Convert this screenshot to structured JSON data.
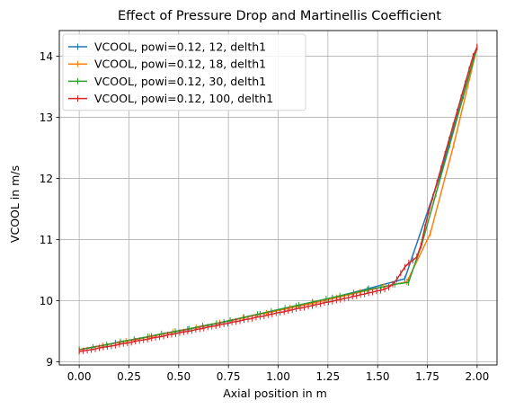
{
  "chart_data": {
    "type": "line",
    "title": "Effect of Pressure Drop and Martinellis Coefficient",
    "xlabel": "Axial position in m",
    "ylabel": "VCOOL in m/s",
    "xlim": [
      -0.1,
      2.1
    ],
    "ylim": [
      8.95,
      14.42
    ],
    "xticks": [
      "0.00",
      "0.25",
      "0.50",
      "0.75",
      "1.00",
      "1.25",
      "1.50",
      "1.75",
      "2.00"
    ],
    "xtick_values": [
      0,
      0.25,
      0.5,
      0.75,
      1.0,
      1.25,
      1.5,
      1.75,
      2.0
    ],
    "yticks": [
      "9",
      "10",
      "11",
      "12",
      "13",
      "14"
    ],
    "ytick_values": [
      9,
      10,
      11,
      12,
      13,
      14
    ],
    "grid": true,
    "legend_position": "top-left",
    "series": [
      {
        "name": "VCOOL, powi=0.12, 12, delth1",
        "color": "#1f77b4",
        "x": [
          0,
          0.1818,
          0.3636,
          0.5455,
          0.7273,
          0.9091,
          1.0909,
          1.2727,
          1.4545,
          1.6364,
          1.8182,
          2.0
        ],
        "y": [
          9.2,
          9.31,
          9.42,
          9.53,
          9.65,
          9.78,
          9.91,
          10.05,
          10.2,
          10.36,
          12.1,
          14.15
        ]
      },
      {
        "name": "VCOOL, powi=0.12, 18, delth1",
        "color": "#ff7f0e",
        "x": [
          0,
          0.1176,
          0.2353,
          0.3529,
          0.4706,
          0.5882,
          0.7059,
          0.8235,
          0.9412,
          1.0588,
          1.1765,
          1.2941,
          1.4118,
          1.5294,
          1.6471,
          1.7647,
          1.8824,
          2.0
        ],
        "y": [
          9.2,
          9.27,
          9.34,
          9.41,
          9.49,
          9.56,
          9.64,
          9.72,
          9.8,
          9.88,
          9.96,
          10.05,
          10.14,
          10.23,
          10.31,
          11.1,
          12.55,
          14.15
        ]
      },
      {
        "name": "VCOOL, powi=0.12, 30, delth1",
        "color": "#2ca02c",
        "x": [
          0,
          0.069,
          0.1379,
          0.2069,
          0.2759,
          0.3448,
          0.4138,
          0.4828,
          0.5517,
          0.6207,
          0.6897,
          0.7586,
          0.8276,
          0.8966,
          0.9655,
          1.0345,
          1.1034,
          1.1724,
          1.2414,
          1.3103,
          1.3793,
          1.4483,
          1.5172,
          1.5862,
          1.6552,
          1.7241,
          1.7931,
          1.8621,
          1.931,
          2.0
        ],
        "y": [
          9.2,
          9.24,
          9.28,
          9.33,
          9.37,
          9.41,
          9.46,
          9.5,
          9.54,
          9.59,
          9.63,
          9.68,
          9.73,
          9.78,
          9.83,
          9.88,
          9.93,
          9.98,
          10.03,
          10.08,
          10.13,
          10.18,
          10.22,
          10.27,
          10.3,
          10.95,
          11.75,
          12.55,
          13.35,
          14.15
        ]
      },
      {
        "name": "VCOOL, powi=0.12, 100, delth1",
        "color": "#d62728",
        "x": [
          0,
          0.0202,
          0.0404,
          0.0606,
          0.0808,
          0.101,
          0.1212,
          0.1414,
          0.1616,
          0.1818,
          0.202,
          0.2222,
          0.2424,
          0.2626,
          0.2828,
          0.303,
          0.3232,
          0.3434,
          0.3636,
          0.3838,
          0.404,
          0.4242,
          0.4444,
          0.4646,
          0.4848,
          0.5051,
          0.5253,
          0.5455,
          0.5657,
          0.5859,
          0.6061,
          0.6263,
          0.6465,
          0.6667,
          0.6869,
          0.7071,
          0.7273,
          0.7475,
          0.7677,
          0.7879,
          0.8081,
          0.8283,
          0.8485,
          0.8687,
          0.8889,
          0.9091,
          0.9293,
          0.9495,
          0.9697,
          0.9899,
          1.0101,
          1.0303,
          1.0505,
          1.0707,
          1.0909,
          1.1111,
          1.1313,
          1.1515,
          1.1717,
          1.1919,
          1.2121,
          1.2323,
          1.2525,
          1.2727,
          1.2929,
          1.3131,
          1.3333,
          1.3535,
          1.3737,
          1.3939,
          1.4141,
          1.4343,
          1.4545,
          1.4747,
          1.4949,
          1.5152,
          1.5354,
          1.5556,
          1.5758,
          1.596,
          1.6162,
          1.6364,
          1.6566,
          1.6768,
          1.697,
          1.7172,
          1.7374,
          1.7576,
          1.7778,
          1.798,
          1.8182,
          1.8384,
          1.8586,
          1.8788,
          1.899,
          1.9192,
          1.9394,
          1.9596,
          1.9798,
          2.0
        ],
        "y": [
          9.17,
          9.18,
          9.19,
          9.2,
          9.21,
          9.23,
          9.24,
          9.25,
          9.26,
          9.27,
          9.29,
          9.3,
          9.31,
          9.32,
          9.34,
          9.35,
          9.36,
          9.37,
          9.39,
          9.4,
          9.41,
          9.42,
          9.44,
          9.45,
          9.46,
          9.48,
          9.49,
          9.5,
          9.51,
          9.53,
          9.54,
          9.55,
          9.57,
          9.58,
          9.59,
          9.61,
          9.62,
          9.63,
          9.65,
          9.66,
          9.67,
          9.69,
          9.7,
          9.71,
          9.73,
          9.74,
          9.75,
          9.77,
          9.78,
          9.8,
          9.81,
          9.82,
          9.84,
          9.85,
          9.87,
          9.88,
          9.89,
          9.91,
          9.92,
          9.94,
          9.95,
          9.97,
          9.98,
          9.99,
          10.01,
          10.02,
          10.04,
          10.05,
          10.07,
          10.08,
          10.1,
          10.11,
          10.13,
          10.14,
          10.16,
          10.17,
          10.19,
          10.22,
          10.27,
          10.35,
          10.45,
          10.55,
          10.62,
          10.66,
          10.72,
          10.9,
          11.2,
          11.47,
          11.7,
          11.93,
          12.16,
          12.4,
          12.63,
          12.86,
          13.09,
          13.32,
          13.55,
          13.78,
          14.0,
          14.15
        ]
      }
    ]
  }
}
